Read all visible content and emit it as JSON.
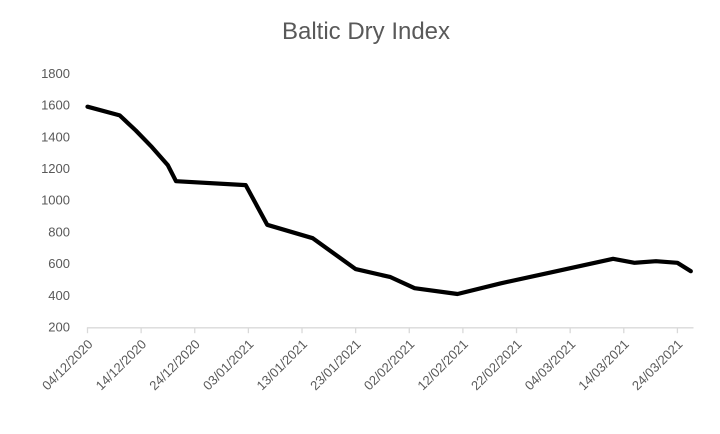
{
  "chart_data": {
    "type": "line",
    "title": "Baltic Dry Index",
    "grid": false,
    "legend": false,
    "line_color": "#000000",
    "axis_color": "#d9d9d9",
    "label_color": "#595959",
    "ylim": [
      200,
      1800
    ],
    "xlim_days": [
      0,
      113
    ],
    "y_ticks": [
      200,
      400,
      600,
      800,
      1000,
      1200,
      1400,
      1600,
      1800
    ],
    "x_ticks": [
      {
        "day": 0,
        "label": "04/12/2020"
      },
      {
        "day": 10,
        "label": "14/12/2020"
      },
      {
        "day": 20,
        "label": "24/12/2020"
      },
      {
        "day": 30,
        "label": "03/01/2021"
      },
      {
        "day": 40,
        "label": "13/01/2021"
      },
      {
        "day": 50,
        "label": "23/01/2021"
      },
      {
        "day": 60,
        "label": "02/02/2021"
      },
      {
        "day": 70,
        "label": "12/02/2021"
      },
      {
        "day": 80,
        "label": "22/02/2021"
      },
      {
        "day": 90,
        "label": "04/03/2021"
      },
      {
        "day": 100,
        "label": "14/03/2021"
      },
      {
        "day": 110,
        "label": "24/03/2021"
      }
    ],
    "series": [
      {
        "name": "Baltic Dry Index",
        "points": [
          {
            "date": "04/12/2020",
            "day": 0,
            "value": 1590
          },
          {
            "date": "10/12/2020",
            "day": 6,
            "value": 1535
          },
          {
            "date": "13/12/2020",
            "day": 9,
            "value": 1440
          },
          {
            "date": "16/12/2020",
            "day": 12,
            "value": 1335
          },
          {
            "date": "19/12/2020",
            "day": 15,
            "value": 1220
          },
          {
            "date": "20/12/2020",
            "day": 16.5,
            "value": 1120
          },
          {
            "date": "02/01/2021",
            "day": 29.5,
            "value": 1095
          },
          {
            "date": "06/01/2021",
            "day": 33.5,
            "value": 845
          },
          {
            "date": "15/01/2021",
            "day": 42,
            "value": 760
          },
          {
            "date": "23/01/2021",
            "day": 50,
            "value": 565
          },
          {
            "date": "29/01/2021",
            "day": 56.5,
            "value": 515
          },
          {
            "date": "03/02/2021",
            "day": 61,
            "value": 445
          },
          {
            "date": "11/02/2021",
            "day": 69,
            "value": 408
          },
          {
            "date": "19/02/2021",
            "day": 77,
            "value": 475
          },
          {
            "date": "28/02/2021",
            "day": 86.5,
            "value": 545
          },
          {
            "date": "12/03/2021",
            "day": 98,
            "value": 630
          },
          {
            "date": "16/03/2021",
            "day": 102,
            "value": 605
          },
          {
            "date": "20/03/2021",
            "day": 106,
            "value": 615
          },
          {
            "date": "24/03/2021",
            "day": 110,
            "value": 605
          },
          {
            "date": "26/03/2021",
            "day": 112.5,
            "value": 552
          }
        ]
      }
    ]
  }
}
